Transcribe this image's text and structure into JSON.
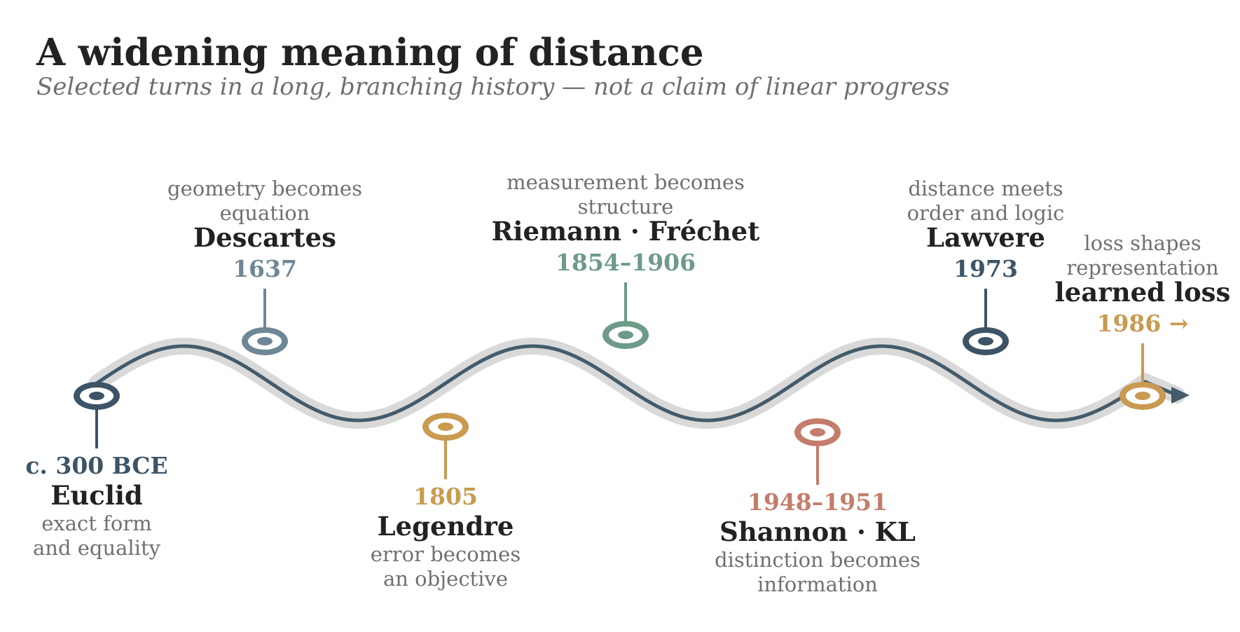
{
  "header": {
    "title": "A widening meaning of distance",
    "subtitle": "Selected turns in a long, branching history — not a claim of linear progress"
  },
  "colors": {
    "track_shadow": "#d9d9d9",
    "track_line": "#435b6b",
    "arrow": "#435b6b"
  },
  "milestones": [
    {
      "id": "euclid",
      "year": "c. 300 BCE",
      "name": "Euclid",
      "caption": [
        "exact form",
        "and equality"
      ],
      "color": "#3d5466",
      "side": "below"
    },
    {
      "id": "descartes",
      "year": "1637",
      "name": "Descartes",
      "caption": [
        "geometry becomes",
        "equation"
      ],
      "color": "#6e8796",
      "side": "above"
    },
    {
      "id": "legendre",
      "year": "1805",
      "name": "Legendre",
      "caption": [
        "error becomes",
        "an objective"
      ],
      "color": "#c99a50",
      "side": "below"
    },
    {
      "id": "riemann-frechet",
      "year": "1854–1906",
      "name": "Riemann · Fréchet",
      "caption": [
        "measurement becomes",
        "structure"
      ],
      "color": "#6e9a87",
      "side": "above"
    },
    {
      "id": "shannon-kl",
      "year": "1948–1951",
      "name": "Shannon · KL",
      "caption": [
        "distinction becomes",
        "information"
      ],
      "color": "#c47c6b",
      "side": "below"
    },
    {
      "id": "lawvere",
      "year": "1973",
      "name": "Lawvere",
      "caption": [
        "distance meets",
        "order and logic"
      ],
      "color": "#3d5466",
      "side": "above"
    },
    {
      "id": "learned-loss",
      "year": "1986 →",
      "name": "learned loss",
      "caption": [
        "loss shapes",
        "representation"
      ],
      "color": "#c99a50",
      "side": "above"
    }
  ]
}
